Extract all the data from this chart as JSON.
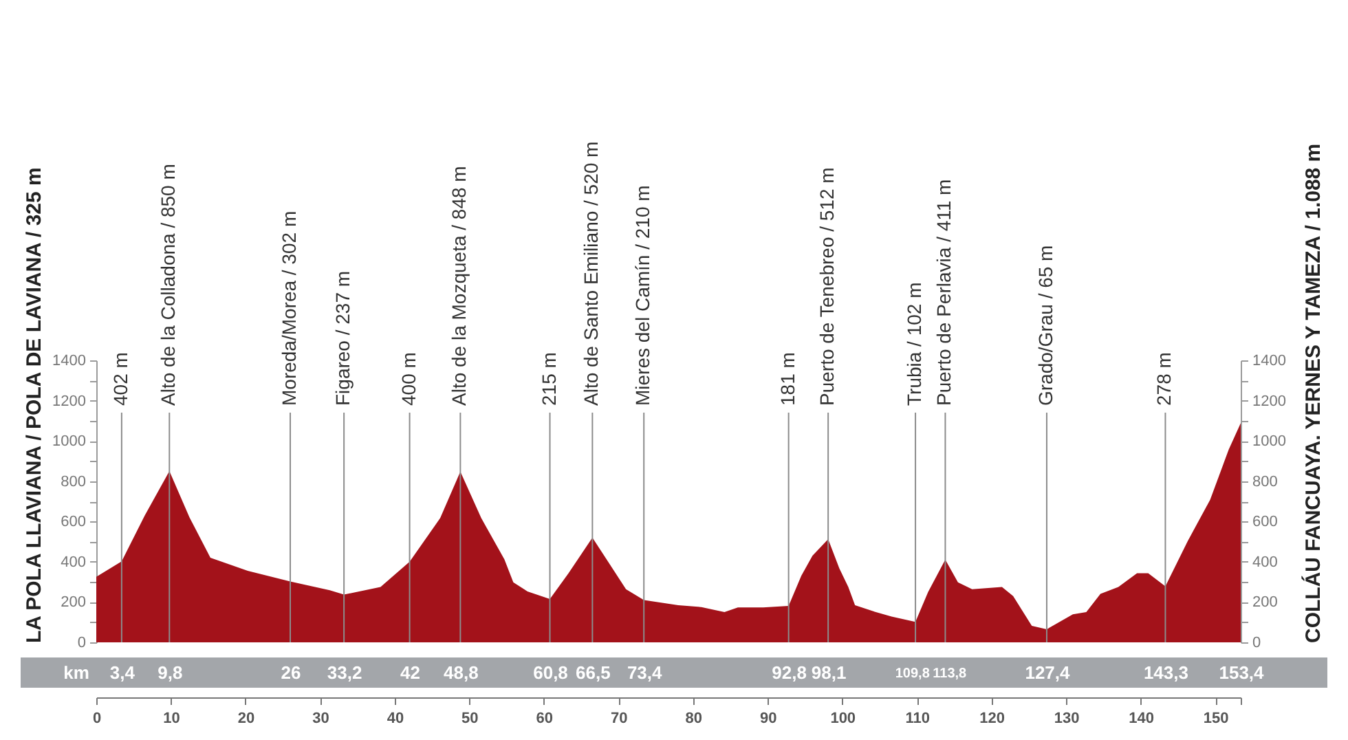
{
  "chart_data": {
    "type": "area",
    "ylabel": "LA POLA LLAVIANA / POLA DE LAVIANA / 325 m",
    "y2label": "COLLÁU FANCUAYA. YERNES Y TAMEZA / 1.088 m",
    "x2label": "km",
    "x": [
      0,
      3.4,
      6.5,
      9.8,
      12.5,
      15.3,
      20.3,
      26,
      31.3,
      33.2,
      38.1,
      42,
      46.1,
      48.8,
      51.6,
      54.7,
      55.9,
      57.8,
      60.8,
      63.3,
      66.5,
      68.8,
      71,
      73.4,
      78,
      81.1,
      84.2,
      86,
      89.4,
      92.8,
      94.5,
      96,
      98.1,
      99.6,
      100.8,
      101.7,
      104.5,
      106.6,
      109.8,
      111.5,
      113.8,
      115.5,
      117.4,
      121.4,
      122.9,
      125.4,
      127.4,
      130.9,
      132.7,
      134.6,
      137,
      139.5,
      141,
      143.3,
      146.3,
      149.3,
      151.8,
      153.4
    ],
    "values": [
      325,
      402,
      630,
      850,
      620,
      420,
      355,
      302,
      259,
      237,
      275,
      400,
      617,
      848,
      617,
      412,
      298,
      253,
      215,
      343,
      520,
      389,
      264,
      210,
      184,
      175,
      150,
      173,
      173,
      181,
      330,
      430,
      512,
      367,
      275,
      184,
      150,
      128,
      102,
      250,
      411,
      298,
      264,
      275,
      230,
      82,
      65,
      139,
      150,
      241,
      275,
      343,
      343,
      278,
      503,
      708,
      958,
      1088
    ],
    "color": "#a3121a",
    "xlim": [
      0,
      153.4
    ],
    "xticks": [
      0,
      10,
      20,
      30,
      40,
      50,
      60,
      70,
      80,
      90,
      100,
      110,
      120,
      130,
      140,
      150,
      {
        "value": 153.4,
        "label": null
      }
    ],
    "x2lim": [
      0,
      153.4
    ],
    "x2ticks": [
      {
        "value": 3.4,
        "label": "3,4"
      },
      {
        "value": 9.8,
        "label": "9,8"
      },
      26,
      {
        "value": 33.2,
        "label": "33,2"
      },
      42,
      {
        "value": 48.8,
        "label": "48,8"
      },
      {
        "value": 60.8,
        "label": "60,8"
      },
      {
        "value": 66.5,
        "label": "66,5"
      },
      {
        "value": 73.4,
        "label": "73,4"
      },
      {
        "value": 92.8,
        "label": "92,8"
      },
      {
        "value": 98.1,
        "label": "98,1"
      },
      {
        "value": 109.8,
        "label": "109,8"
      },
      {
        "value": 113.8,
        "label": "113,8"
      },
      {
        "value": 127.4,
        "label": "127,4"
      },
      {
        "value": 143.3,
        "label": "143,3"
      },
      {
        "value": 153.4,
        "label": "153,4"
      }
    ],
    "ylim": [
      0,
      1400
    ],
    "yticks": [
      0,
      {
        "value": 100,
        "label": null
      },
      200,
      {
        "value": 300,
        "label": null
      },
      400,
      {
        "value": 500,
        "label": null
      },
      600,
      {
        "value": 700,
        "label": null
      },
      800,
      {
        "value": 900,
        "label": null
      },
      1000,
      {
        "value": 1100,
        "label": null
      },
      1200,
      {
        "value": 1300,
        "label": null
      },
      1400
    ],
    "y2lim": [
      0,
      1400
    ],
    "y2ticks": [
      0,
      {
        "value": 100,
        "label": null
      },
      200,
      {
        "value": 300,
        "label": null
      },
      400,
      {
        "value": 500,
        "label": null
      },
      600,
      {
        "value": 700,
        "label": null
      },
      800,
      {
        "value": 900,
        "label": null
      },
      1000,
      {
        "value": 1100,
        "label": null
      },
      1200,
      {
        "value": 1300,
        "label": null
      },
      1400
    ],
    "ref_lines": [
      {
        "axis": "x",
        "value": 3.4,
        "label": "402 m",
        "color": "#8c8c8c"
      },
      {
        "axis": "x",
        "value": 9.8,
        "label": "Alto de la Colladona / 850 m",
        "color": "#8c8c8c"
      },
      {
        "axis": "x",
        "value": 26,
        "label": "Moreda/Morea / 302 m",
        "color": "#8c8c8c"
      },
      {
        "axis": "x",
        "value": 33.2,
        "label": "Figareo / 237 m",
        "color": "#8c8c8c"
      },
      {
        "axis": "x",
        "value": 42,
        "label": "400 m",
        "color": "#8c8c8c"
      },
      {
        "axis": "x",
        "value": 48.8,
        "label": "Alto de la Mozqueta / 848 m",
        "color": "#8c8c8c"
      },
      {
        "axis": "x",
        "value": 60.8,
        "label": "215 m",
        "color": "#8c8c8c"
      },
      {
        "axis": "x",
        "value": 66.5,
        "label": "Alto de Santo Emiliano / 520 m",
        "color": "#8c8c8c"
      },
      {
        "axis": "x",
        "value": 73.4,
        "label": "Mieres del Camín / 210 m",
        "color": "#8c8c8c"
      },
      {
        "axis": "x",
        "value": 92.8,
        "label": "181 m",
        "color": "#8c8c8c"
      },
      {
        "axis": "x",
        "value": 98.1,
        "label": "Puerto de Tenebreo / 512 m",
        "color": "#8c8c8c"
      },
      {
        "axis": "x",
        "value": 109.8,
        "label": "Trubia / 102 m",
        "color": "#8c8c8c"
      },
      {
        "axis": "x",
        "value": 113.8,
        "label": "Puerto de Perlavia / 411 m",
        "color": "#8c8c8c"
      },
      {
        "axis": "x",
        "value": 127.4,
        "label": "Grado/Grau / 65 m",
        "color": "#8c8c8c"
      },
      {
        "axis": "x",
        "value": 143.3,
        "label": "278 m",
        "color": "#8c8c8c"
      }
    ],
    "grid": false
  }
}
